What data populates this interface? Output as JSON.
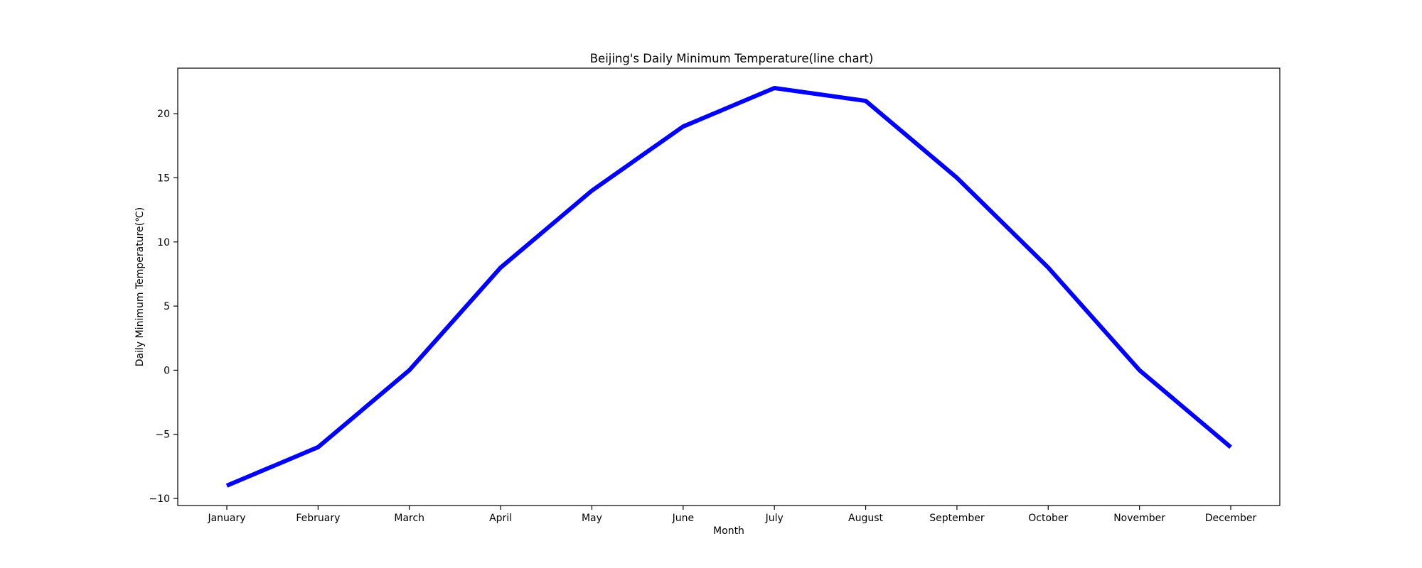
{
  "chart_data": {
    "type": "line",
    "title": "Beijing's Daily Minimum Temperature(line chart)",
    "xlabel": "Month",
    "ylabel": "Daily Minimum Temperature(℃)",
    "categories": [
      "January",
      "February",
      "March",
      "April",
      "May",
      "June",
      "July",
      "August",
      "September",
      "October",
      "November",
      "December"
    ],
    "series": [
      {
        "values": [
          -9,
          -6,
          0,
          8,
          14,
          19,
          22,
          21,
          15,
          8,
          0,
          -6
        ],
        "color": "#0000ff"
      }
    ],
    "ylim": [
      -10.55,
      23.55
    ],
    "yticks": [
      -10,
      -5,
      0,
      5,
      10,
      15,
      20
    ],
    "grid": false
  }
}
